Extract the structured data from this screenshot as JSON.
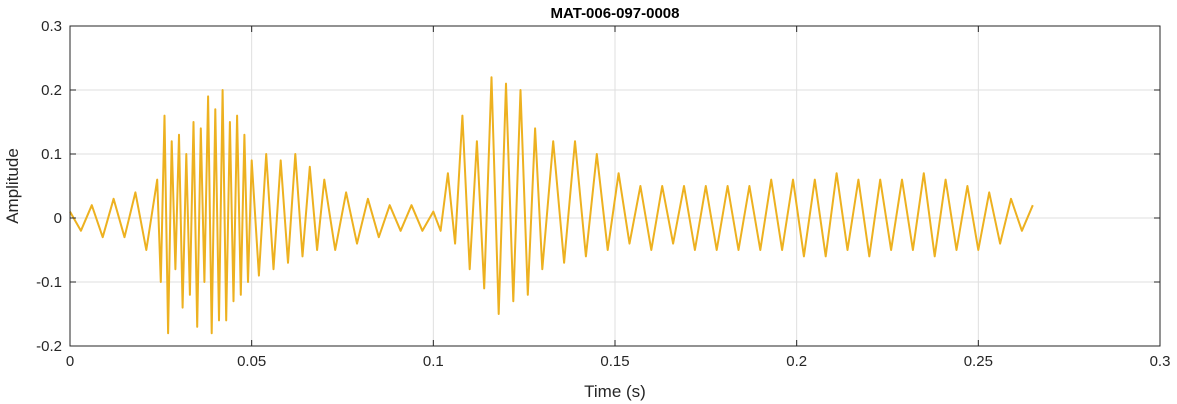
{
  "chart_data": {
    "type": "line",
    "title": "MAT-006-097-0008",
    "xlabel": "Time (s)",
    "ylabel": "Amplitude",
    "xlim": [
      0,
      0.3
    ],
    "ylim": [
      -0.2,
      0.3
    ],
    "xticks": [
      0,
      0.05,
      0.1,
      0.15,
      0.2,
      0.25,
      0.3
    ],
    "xtick_labels": [
      "0",
      "0.05",
      "0.1",
      "0.15",
      "0.2",
      "0.25",
      "0.3"
    ],
    "yticks": [
      -0.2,
      -0.1,
      0,
      0.1,
      0.2,
      0.3
    ],
    "ytick_labels": [
      "-0.2",
      "-0.1",
      "0",
      "0.1",
      "0.2",
      "0.3"
    ],
    "grid": true,
    "line_color": "#EDB120",
    "series": [
      {
        "x": [
          0,
          0.003,
          0.006,
          0.009,
          0.012,
          0.015,
          0.018,
          0.021,
          0.024,
          0.025,
          0.026,
          0.027,
          0.028,
          0.029,
          0.03,
          0.031,
          0.032,
          0.033,
          0.034,
          0.035,
          0.036,
          0.037,
          0.038,
          0.039,
          0.04,
          0.041,
          0.042,
          0.043,
          0.044,
          0.045,
          0.046,
          0.047,
          0.048,
          0.049,
          0.05,
          0.052,
          0.054,
          0.056,
          0.058,
          0.06,
          0.062,
          0.064,
          0.066,
          0.068,
          0.07,
          0.073,
          0.076,
          0.079,
          0.082,
          0.085,
          0.088,
          0.091,
          0.094,
          0.097,
          0.1,
          0.102,
          0.104,
          0.106,
          0.108,
          0.11,
          0.112,
          0.114,
          0.116,
          0.118,
          0.12,
          0.122,
          0.124,
          0.126,
          0.128,
          0.13,
          0.133,
          0.136,
          0.139,
          0.142,
          0.145,
          0.148,
          0.151,
          0.154,
          0.157,
          0.16,
          0.163,
          0.166,
          0.169,
          0.172,
          0.175,
          0.178,
          0.181,
          0.184,
          0.187,
          0.19,
          0.193,
          0.196,
          0.199,
          0.202,
          0.205,
          0.208,
          0.211,
          0.214,
          0.217,
          0.22,
          0.223,
          0.226,
          0.229,
          0.232,
          0.235,
          0.238,
          0.241,
          0.244,
          0.247,
          0.25,
          0.253,
          0.256,
          0.259,
          0.262,
          0.265
        ],
        "y": [
          0.01,
          -0.02,
          0.02,
          -0.03,
          0.03,
          -0.03,
          0.04,
          -0.05,
          0.06,
          -0.1,
          0.16,
          -0.18,
          0.12,
          -0.08,
          0.13,
          -0.14,
          0.1,
          -0.12,
          0.15,
          -0.17,
          0.14,
          -0.1,
          0.19,
          -0.18,
          0.17,
          -0.16,
          0.2,
          -0.16,
          0.15,
          -0.13,
          0.16,
          -0.12,
          0.13,
          -0.1,
          0.09,
          -0.09,
          0.1,
          -0.08,
          0.09,
          -0.07,
          0.1,
          -0.06,
          0.08,
          -0.05,
          0.06,
          -0.05,
          0.04,
          -0.04,
          0.03,
          -0.03,
          0.02,
          -0.02,
          0.02,
          -0.02,
          0.01,
          -0.02,
          0.07,
          -0.04,
          0.16,
          -0.08,
          0.12,
          -0.11,
          0.22,
          -0.15,
          0.21,
          -0.13,
          0.2,
          -0.12,
          0.14,
          -0.08,
          0.12,
          -0.07,
          0.12,
          -0.06,
          0.1,
          -0.05,
          0.07,
          -0.04,
          0.05,
          -0.05,
          0.05,
          -0.04,
          0.05,
          -0.05,
          0.05,
          -0.05,
          0.05,
          -0.05,
          0.05,
          -0.05,
          0.06,
          -0.05,
          0.06,
          -0.06,
          0.06,
          -0.06,
          0.07,
          -0.05,
          0.06,
          -0.06,
          0.06,
          -0.05,
          0.06,
          -0.05,
          0.07,
          -0.06,
          0.06,
          -0.05,
          0.05,
          -0.05,
          0.04,
          -0.04,
          0.03,
          -0.02,
          0.02
        ]
      }
    ]
  }
}
